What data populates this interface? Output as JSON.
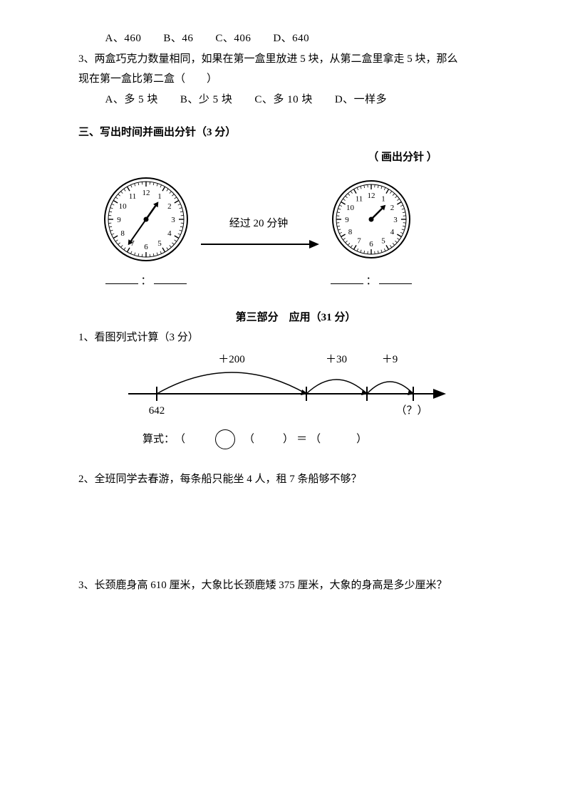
{
  "q2_choices": "A、460　　B、46　　C、406　　D、640",
  "q3_text": "3、两盒巧克力数量相同，如果在第一盒里放进 5 块，从第二盒里拿走 5 块，那么",
  "q3_text2": "现在第一盒比第二盒（　　）",
  "q3_choices": "A、多 5 块　　B、少 5 块　　C、多 10 块　　D、一样多",
  "sec3_title": "三、写出时间并画出分针（3 分）",
  "draw_minute": "（ 画出分针 ）",
  "elapsed": "经过 20 分钟",
  "colon": "：",
  "part3_title": "第三部分　应用（31 分）",
  "p1": "1、看图列式计算（3 分）",
  "nl": {
    "plus200": "＋200",
    "plus30": "＋30",
    "plus9": "＋9",
    "start": "642",
    "end": "（？）"
  },
  "eq": {
    "label": "算式：",
    "lp": "（",
    "rp": "）",
    "eqsign": "＝"
  },
  "p2": "2、全班同学去春游，每条船只能坐 4 人，租 7 条船够不够？",
  "p3": "3、长颈鹿身高 610 厘米，大象比长颈鹿矮 375 厘米，大象的身高是多少厘米？",
  "clock1": {
    "numbers": [
      "12",
      "1",
      "2",
      "3",
      "4",
      "5",
      "6",
      "7",
      "8",
      "9",
      "10",
      "11"
    ],
    "hour_angle": 35,
    "minute_angle": 215
  },
  "clock2": {
    "numbers": [
      "12",
      "1",
      "2",
      "3",
      "4",
      "5",
      "6",
      "7",
      "8",
      "9",
      "10",
      "11"
    ],
    "hour_angle": 45
  }
}
